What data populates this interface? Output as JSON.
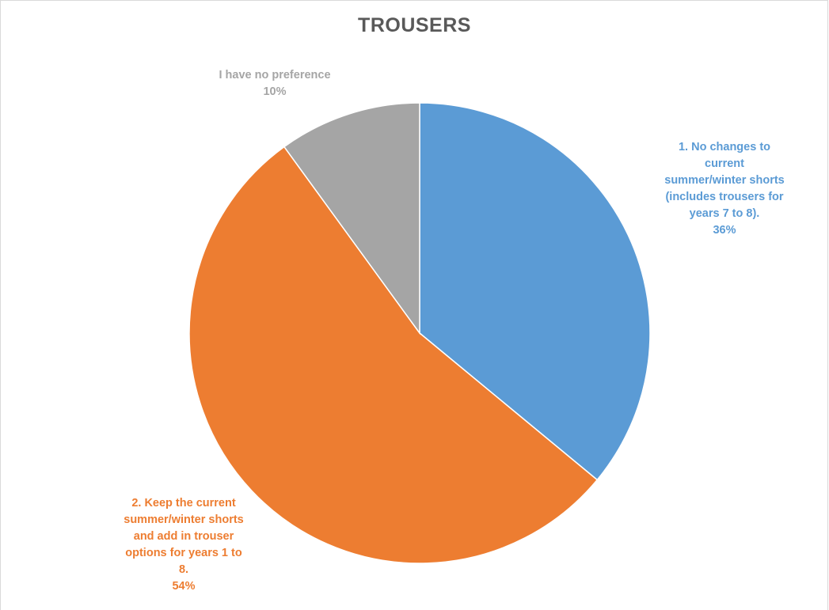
{
  "chart_data": {
    "type": "pie",
    "title": "TROUSERS",
    "slices": [
      {
        "label": "1. No changes to current summer/winter shorts (includes trousers for years 7 to 8).",
        "label_lines": [
          "1. No changes to",
          "current",
          "summer/winter shorts",
          "(includes trousers for",
          "years 7 to 8)."
        ],
        "value": 36,
        "percent_label": "36%",
        "color": "#5b9bd5"
      },
      {
        "label": "2. Keep the current summer/winter shorts and add in trouser options for years 1 to 8.",
        "label_lines": [
          "2. Keep the current",
          "summer/winter shorts",
          "and add in trouser",
          "options for years 1 to",
          "8."
        ],
        "value": 54,
        "percent_label": "54%",
        "color": "#ed7d31"
      },
      {
        "label": "I have no preference",
        "label_lines": [
          "I have no preference"
        ],
        "value": 10,
        "percent_label": "10%",
        "color": "#a5a5a5"
      }
    ],
    "start_angle_deg": 0,
    "direction": "clockwise",
    "legend": "none"
  }
}
